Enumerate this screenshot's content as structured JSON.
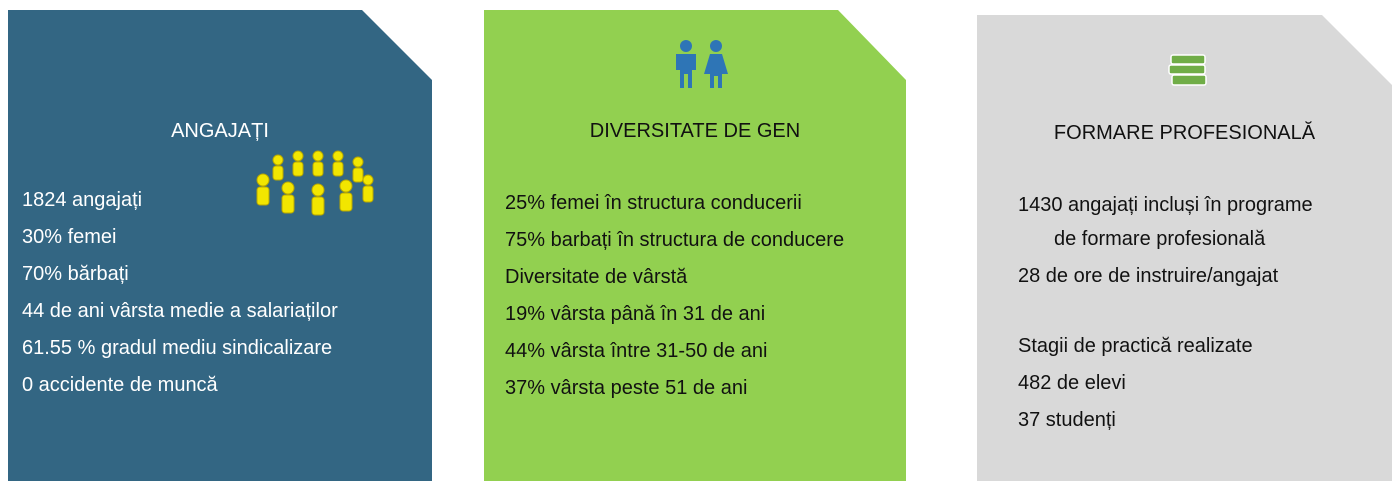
{
  "panels": [
    {
      "title": "ANGAJAȚI",
      "items": [
        "1824 angajați",
        "30% femei",
        "70% bărbați",
        "44 de ani vârsta medie  a salariaților",
        "61.55 % gradul mediu sindicalizare",
        "0 accidente de muncă"
      ]
    },
    {
      "title": "DIVERSITATE DE GEN",
      "items": [
        "25% femei în structura conducerii",
        "75% barbați în structura de conducere",
        "Diversitate de vârstă",
        "19% vârsta până în 31 de ani",
        "44% vârsta între 31-50 de ani",
        "37% vârsta peste 51 de ani"
      ]
    },
    {
      "title": "FORMARE PROFESIONALĂ",
      "items": [
        "1430 angajați incluși în programe de formare profesională",
        "28 de ore de instruire/angajat",
        "Stagii de practică realizate",
        "482 de elevi",
        "37 studenți"
      ]
    }
  ]
}
